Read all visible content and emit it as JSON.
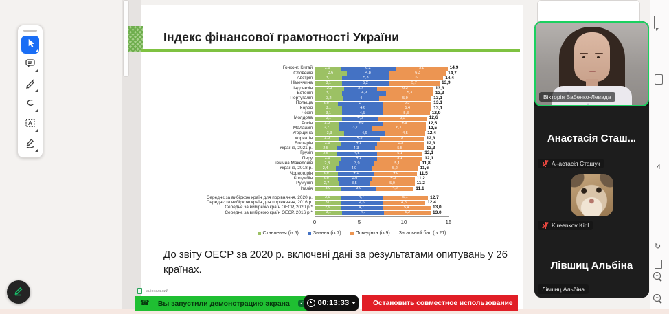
{
  "slide": {
    "title": "Індекс фінансової грамотності України",
    "note": "До звіту ОЕСР за 2020 р. включені дані за результатами опитувань у 26 країнах.",
    "footer_label": "Національний"
  },
  "chart_data": {
    "type": "bar",
    "orientation": "horizontal",
    "stacked": true,
    "title": "Індекс фінансової грамотності України",
    "series_names": [
      "Ставлення (із 5)",
      "Знання (із 7)",
      "Поведінка (із 9)"
    ],
    "colors_list": [
      "#9CC164",
      "#4472C4",
      "#EC9552"
    ],
    "xlim": [
      0,
      15
    ],
    "xticks": [
      "0",
      "5",
      "10",
      "15"
    ],
    "legend": [
      {
        "label": "Ставлення (із 5)",
        "color": "#9CC164"
      },
      {
        "label": "Знання (із 7)",
        "color": "#4472C4"
      },
      {
        "label": "Поведінка (із 9)",
        "color": "#EC9552"
      },
      {
        "label": "Загальний бал (із 21)",
        "color": null
      }
    ],
    "rows": [
      {
        "label": "Гонконг, Китай",
        "values": [
          2.9,
          6.2,
          5.8
        ],
        "values_display": [
          "2,9",
          "6,2",
          "5,8"
        ],
        "total": "14,9"
      },
      {
        "label": "Словенія",
        "values": [
          3.6,
          4.8,
          6.3
        ],
        "values_display": [
          "3,6",
          "4,8",
          "6,3"
        ],
        "total": "14,7"
      },
      {
        "label": "Австрія",
        "values": [
          3.1,
          5.3,
          6.0
        ],
        "values_display": [
          "3,1",
          "5,3",
          "6"
        ],
        "total": "14,4"
      },
      {
        "label": "Німеччина",
        "values": [
          3.1,
          5.2,
          5.7
        ],
        "values_display": [
          "3,1",
          "5,2",
          "5,7"
        ],
        "total": "13,9"
      },
      {
        "label": "Індонезія",
        "values": [
          3.3,
          3.7,
          6.3
        ],
        "values_display": [
          "3,3",
          "3,7",
          "6,3"
        ],
        "total": "13,3"
      },
      {
        "label": "Естонія",
        "values": [
          3.1,
          4.9,
          5.3
        ],
        "values_display": [
          "3,1",
          "4,9",
          "5,3"
        ],
        "total": "13,3"
      },
      {
        "label": "Португалія",
        "values": [
          3.2,
          4.0,
          5.9
        ],
        "values_display": [
          "3,2",
          "4",
          "5,9"
        ],
        "total": "13,1"
      },
      {
        "label": "Польща",
        "values": [
          2.6,
          5.0,
          5.5
        ],
        "values_display": [
          "2,6",
          "5",
          "5,5"
        ],
        "total": "13,1"
      },
      {
        "label": "Корея",
        "values": [
          3.1,
          4.6,
          5.4
        ],
        "values_display": [
          "3,1",
          "4,6",
          "5,4"
        ],
        "total": "13,1"
      },
      {
        "label": "Чехія",
        "values": [
          3.1,
          4.5,
          5.3
        ],
        "values_display": [
          "3,1",
          "4,5",
          "5,3"
        ],
        "total": "12,9"
      },
      {
        "label": "Молдова",
        "values": [
          3.1,
          4.0,
          5.5
        ],
        "values_display": [
          "3,1",
          "4,0",
          "5,5"
        ],
        "total": "12,6"
      },
      {
        "label": "Росія",
        "values": [
          2.8,
          4.8,
          4.9
        ],
        "values_display": [
          "2,8",
          "4,8",
          "4,9"
        ],
        "total": "12,5"
      },
      {
        "label": "Малайзія",
        "values": [
          2.7,
          3.7,
          6.1
        ],
        "values_display": [
          "2,7",
          "3,7",
          "6,1"
        ],
        "total": "12,5"
      },
      {
        "label": "Угорщина",
        "values": [
          3.3,
          4.6,
          4.5
        ],
        "values_display": [
          "3,3",
          "4,6",
          "4,5"
        ],
        "total": "12,4"
      },
      {
        "label": "Хорватія",
        "values": [
          2.8,
          4.5,
          5.0
        ],
        "values_display": [
          "2,8",
          "4,5",
          "5"
        ],
        "total": "12,3"
      },
      {
        "label": "Болгарія",
        "values": [
          2.9,
          4.1,
          5.3
        ],
        "values_display": [
          "2,9",
          "4,1",
          "5,3"
        ],
        "total": "12,3"
      },
      {
        "label": "Україна, 2021 р.",
        "values": [
          2.5,
          4.3,
          5.5
        ],
        "values_display": [
          "2,5",
          "4,3",
          "5,5"
        ],
        "total": "12,3"
      },
      {
        "label": "Грузія",
        "values": [
          2.5,
          4.5,
          5.1
        ],
        "values_display": [
          "2,5",
          "4,5",
          "5,1"
        ],
        "total": "12,1"
      },
      {
        "label": "Перу",
        "values": [
          2.9,
          4.1,
          5.1
        ],
        "values_display": [
          "2,9",
          "4,1",
          "5,1"
        ],
        "total": "12,1"
      },
      {
        "label": "Північна Македонія",
        "values": [
          2.8,
          3.9,
          5.1
        ],
        "values_display": [
          "2,8",
          "3,9",
          "5,1"
        ],
        "total": "11,8"
      },
      {
        "label": "Україна, 2018 р.",
        "values": [
          2.4,
          4.0,
          5.2
        ],
        "values_display": [
          "2,4",
          "4,0",
          "5,2"
        ],
        "total": "11,6"
      },
      {
        "label": "Чорногорія",
        "values": [
          2.6,
          4.1,
          4.8
        ],
        "values_display": [
          "2,6",
          "4,1",
          "4,8"
        ],
        "total": "11,5"
      },
      {
        "label": "Колумбія",
        "values": [
          2.6,
          3.8,
          4.8
        ],
        "values_display": [
          "2,6",
          "3,8",
          "4,8"
        ],
        "total": "11,2"
      },
      {
        "label": "Румунія",
        "values": [
          2.7,
          3.5,
          5.0
        ],
        "values_display": [
          "2,7",
          "3,5",
          "5,0"
        ],
        "total": "11,2"
      },
      {
        "label": "Італія",
        "values": [
          3.0,
          3.9,
          4.2
        ],
        "values_display": [
          "3,0",
          "3,9",
          "4,2"
        ],
        "total": "11,1"
      }
    ],
    "summary_rows": [
      {
        "label": "Середнє за вибіркою країн для порівняння, 2020 р.",
        "values": [
          2.9,
          4.7,
          5.1
        ],
        "values_display": [
          "2,9",
          "4,7",
          "5,1"
        ],
        "total": "12,7"
      },
      {
        "label": "Середнє за вибіркою країн для порівняння, 2016 р.",
        "values": [
          3.0,
          4.6,
          4.8
        ],
        "values_display": [
          "3,0",
          "4,6",
          "4,8"
        ],
        "total": "12,4"
      },
      {
        "label": "Середнє за вибіркою країн ОЕСР, 2020 р.*",
        "values": [
          2.9,
          4.7,
          5.4
        ],
        "values_display": [
          "2,9",
          "4,7",
          "5,4"
        ],
        "total": "13,0"
      },
      {
        "label": "Середнє за вибіркою країн ОЕСР, 2016 р.*",
        "values": [
          3.1,
          4.7,
          5.2
        ],
        "values_display": [
          "3,1",
          "4,7",
          "5,2"
        ],
        "total": "13,0"
      }
    ]
  },
  "share_bar": {
    "message": "Вы запустили демонстрацию экрана",
    "timer": "00:13:33",
    "stop_label": "Остановить совместное использование"
  },
  "participants": [
    {
      "name": "Вікторія Бабенко-Левада",
      "type": "video",
      "muted": false,
      "active_speaker": true
    },
    {
      "name": "Анастасія Сташук",
      "display": "Анастасія Сташ...",
      "type": "text",
      "muted": true
    },
    {
      "name": "Kireenkov Kiril",
      "type": "avatar",
      "muted": true
    },
    {
      "name": "Лівшиц Альбіна",
      "display": "Лівшиц Альбіна",
      "type": "text",
      "muted": false
    }
  ],
  "toolbar": {
    "tools": [
      "select",
      "comment",
      "highlight",
      "lasso",
      "select-text",
      "fill-sign"
    ]
  },
  "side_icons": {
    "page_number": "4"
  },
  "colors": {
    "underline_green": "#7FC241",
    "share_green": "#1FBF32",
    "stop_red": "#E11E26",
    "active_speaker_border": "#1AD05F"
  }
}
